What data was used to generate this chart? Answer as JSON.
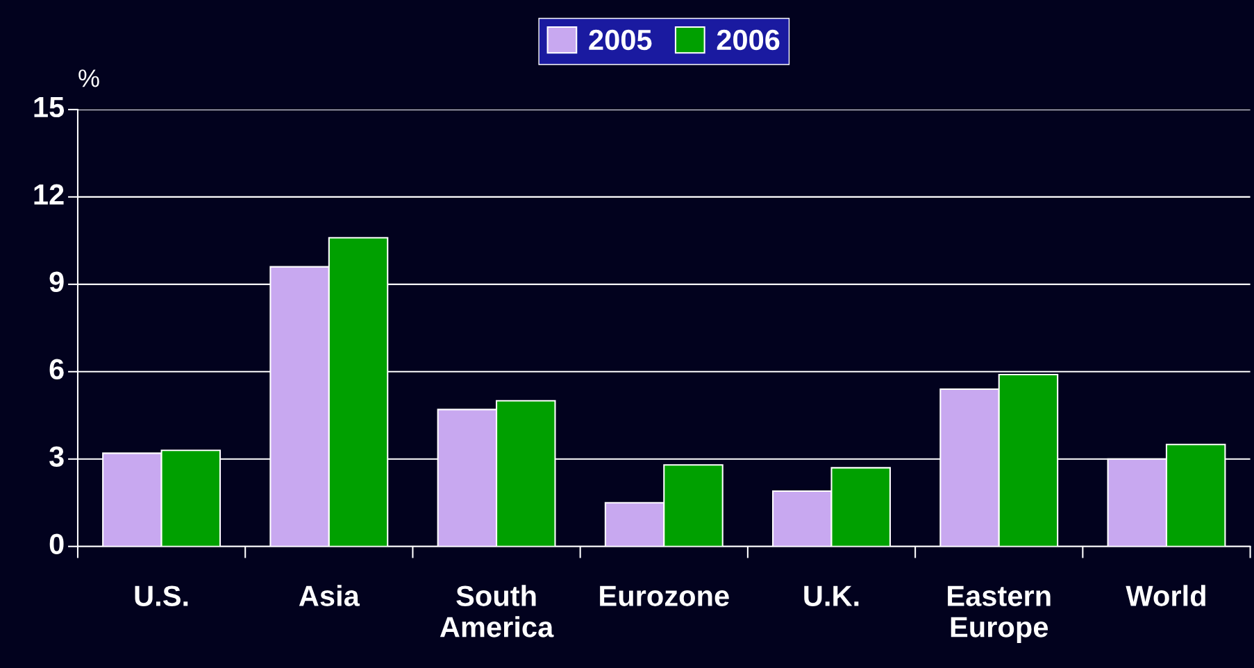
{
  "chart_data": {
    "type": "bar",
    "ylabel": "%",
    "categories": [
      "U.S.",
      "Asia",
      "South America",
      "Eurozone",
      "U.K.",
      "Eastern Europe",
      "World"
    ],
    "series": [
      {
        "name": "2005",
        "color": "#c8a8f0",
        "values": [
          3.2,
          9.6,
          4.7,
          1.5,
          1.9,
          5.4,
          3.0
        ]
      },
      {
        "name": "2006",
        "color": "#00a000",
        "values": [
          3.3,
          10.6,
          5.0,
          2.8,
          2.7,
          5.9,
          3.5
        ]
      }
    ],
    "ylim": [
      0,
      15
    ],
    "yticks": [
      0,
      3,
      6,
      9,
      12,
      15
    ],
    "grid": "y",
    "legend": "top"
  }
}
